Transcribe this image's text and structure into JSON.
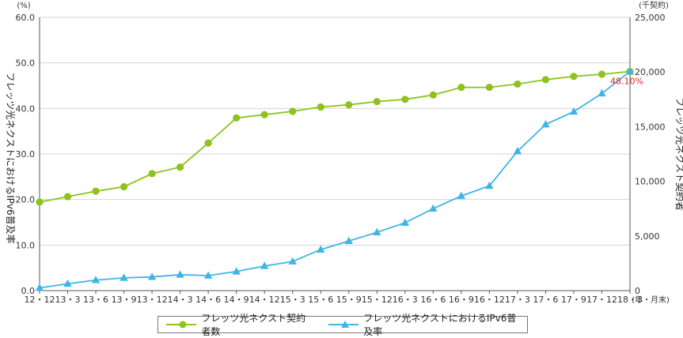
{
  "chart_data": {
    "type": "line",
    "x": [
      "12・12",
      "13・3",
      "13・6",
      "13・9",
      "13・12",
      "14・3",
      "14・6",
      "14・9",
      "14・12",
      "15・3",
      "15・6",
      "15・9",
      "15・12",
      "16・3",
      "16・6",
      "16・9",
      "16・12",
      "17・3",
      "17・6",
      "17・9",
      "17・12",
      "18・3"
    ],
    "x_unit": "(年・月末)",
    "left_axis": {
      "unit": "(%)",
      "title": "フレッツ光ネクストにおけるIPv6普及率",
      "range": [
        0,
        60
      ],
      "ticks": [
        "0.0",
        "10.0",
        "20.0",
        "30.0",
        "40.0",
        "50.0",
        "60.0"
      ]
    },
    "right_axis": {
      "unit": "(千契約)",
      "title": "フレッツ光ネクスト契約者",
      "range": [
        0,
        25000
      ],
      "ticks": [
        "0",
        "5,000",
        "10,000",
        "15,000",
        "20,000",
        "25,000"
      ]
    },
    "series": [
      {
        "name": "フレッツ光ネクスト契約者数",
        "axis": "right",
        "color": "#8dc21f",
        "marker": "circle",
        "values": [
          8100,
          8600,
          9100,
          9500,
          10700,
          11300,
          13500,
          15800,
          16100,
          16400,
          16800,
          17000,
          17300,
          17500,
          17900,
          18600,
          18600,
          18900,
          19300,
          19600,
          19800,
          20050
        ]
      },
      {
        "name": "フレッツ光ネクストにおけるIPv6普及率",
        "axis": "left",
        "color": "#3fb5e5",
        "marker": "triangle",
        "values": [
          0.6,
          1.5,
          2.3,
          2.8,
          3.0,
          3.5,
          3.3,
          4.2,
          5.4,
          6.4,
          9.0,
          10.9,
          12.8,
          14.9,
          18.0,
          20.8,
          23.0,
          30.6,
          36.5,
          39.3,
          43.3,
          48.1
        ]
      }
    ],
    "annotations": [
      {
        "text": "48.10%",
        "series": 1,
        "point": 21
      }
    ],
    "grid": "horizontal",
    "legend_position": "bottom"
  }
}
